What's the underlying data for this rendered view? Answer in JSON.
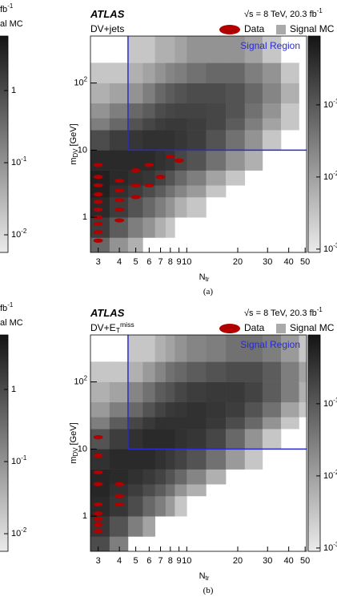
{
  "chart_data": [
    {
      "type": "colorbar",
      "zlim": [
        0.0057,
        5.7
      ],
      "zticks": [
        {
          "value": 0.01,
          "label": "10^{-2}"
        },
        {
          "value": 0.1,
          "label": "10^{-1}"
        },
        1
      ],
      "annotation": "fb^{-1}",
      "legend_text": "al MC"
    },
    {
      "type": "heatmap",
      "title": "ATLAS",
      "subtitle": "DV+jets",
      "annotation": "√s = 8 TeV, 20.3 fb^{-1}",
      "xlabel": "N_{tr}",
      "ylabel": "m_{DV} [GeV]",
      "caption": "(a)",
      "log_x": true,
      "log_y": true,
      "xlim": [
        2.7,
        51
      ],
      "ylim": [
        0.3,
        500
      ],
      "xticks": [
        3,
        4,
        5,
        6,
        7,
        8,
        9,
        10,
        20,
        30,
        40,
        50
      ],
      "yticks": [
        1,
        10,
        {
          "value": 100,
          "label": "10^{2}"
        }
      ],
      "zlim": [
        0.0009,
        0.9
      ],
      "zticks": [
        {
          "value": 0.1,
          "label": "10^{-1}"
        },
        {
          "value": 0.01,
          "label": "10^{-2}"
        },
        {
          "value": 0.001,
          "label": "10^{-3}"
        }
      ],
      "signal_region": {
        "label": "Signal Region",
        "x": 4.5,
        "y": 10,
        "color": "#2a2ad0"
      },
      "x_bins": [
        2.5,
        3.5,
        4.5,
        5.5,
        6.5,
        7.5,
        8.5,
        10,
        13,
        17,
        22,
        28,
        36,
        46,
        51
      ],
      "y_bins": [
        0.3,
        0.5,
        1,
        2,
        3,
        5,
        10,
        20,
        30,
        50,
        100,
        200,
        500
      ],
      "z": [
        [
          0.06,
          0.015,
          0.006,
          null,
          null,
          null,
          null,
          null,
          null,
          null,
          null,
          null,
          null,
          null
        ],
        [
          0.24,
          0.09,
          0.03,
          0.015,
          0.006,
          0.003,
          null,
          null,
          null,
          null,
          null,
          null,
          null,
          null
        ],
        [
          0.45,
          0.24,
          0.12,
          0.06,
          0.03,
          0.015,
          0.006,
          0.003,
          null,
          null,
          null,
          null,
          null,
          null
        ],
        [
          0.6,
          0.36,
          0.24,
          0.15,
          0.09,
          0.045,
          0.024,
          0.012,
          0.003,
          null,
          null,
          null,
          null,
          null
        ],
        [
          0.6,
          0.45,
          0.36,
          0.3,
          0.2,
          0.12,
          0.06,
          0.03,
          0.009,
          0.003,
          null,
          null,
          null,
          null
        ],
        [
          0.45,
          0.45,
          0.45,
          0.45,
          0.36,
          0.3,
          0.18,
          0.12,
          0.045,
          0.015,
          0.006,
          null,
          null,
          null
        ],
        [
          0.15,
          0.24,
          0.3,
          0.36,
          0.36,
          0.36,
          0.3,
          0.24,
          0.12,
          0.045,
          0.015,
          0.003,
          null,
          null
        ],
        [
          0.03,
          0.06,
          0.12,
          0.18,
          0.24,
          0.27,
          0.27,
          0.24,
          0.18,
          0.09,
          0.03,
          0.009,
          0.003,
          null
        ],
        [
          0.015,
          0.03,
          0.06,
          0.09,
          0.15,
          0.18,
          0.2,
          0.2,
          0.18,
          0.12,
          0.045,
          0.015,
          0.003,
          null
        ],
        [
          0.006,
          0.009,
          0.015,
          0.03,
          0.06,
          0.09,
          0.12,
          0.15,
          0.15,
          0.12,
          0.06,
          0.024,
          0.006,
          null
        ],
        [
          0.003,
          0.003,
          0.006,
          0.009,
          0.015,
          0.024,
          0.03,
          0.045,
          0.06,
          0.06,
          0.03,
          0.015,
          0.003,
          null
        ],
        [
          null,
          null,
          0.003,
          0.003,
          0.006,
          0.006,
          0.009,
          0.015,
          0.015,
          0.015,
          0.009,
          0.003,
          null,
          null
        ]
      ],
      "series": [
        {
          "name": "Data",
          "color": "#b00000",
          "x": [
            3,
            3,
            3,
            3,
            3,
            3,
            3,
            3,
            3,
            3,
            4,
            4,
            4,
            4,
            4,
            5,
            5,
            5,
            6,
            6,
            7,
            8,
            9
          ],
          "values": [
            0.45,
            0.6,
            0.8,
            1,
            1.3,
            1.7,
            2.2,
            3,
            4,
            6,
            0.9,
            1.3,
            1.8,
            2.5,
            3.5,
            2,
            3,
            5,
            3,
            6,
            4,
            8,
            7
          ]
        },
        {
          "name": "Signal MC",
          "color": "#aaaaaa"
        }
      ]
    },
    {
      "type": "colorbar",
      "zlim": [
        0.0057,
        5.7
      ],
      "zticks": [
        {
          "value": 0.01,
          "label": "10^{-2}"
        },
        {
          "value": 0.1,
          "label": "10^{-1}"
        },
        1
      ],
      "annotation": "fb^{-1}",
      "legend_text": "al MC"
    },
    {
      "type": "heatmap",
      "title": "ATLAS",
      "subtitle": "DV+E_{T}^{miss}",
      "annotation": "√s = 8 TeV, 20.3 fb^{-1}",
      "xlabel": "N_{tr}",
      "ylabel": "m_{DV} [GeV]",
      "caption": "(b)",
      "log_x": true,
      "log_y": true,
      "xlim": [
        2.7,
        51
      ],
      "ylim": [
        0.3,
        500
      ],
      "xticks": [
        3,
        4,
        5,
        6,
        7,
        8,
        9,
        10,
        20,
        30,
        40,
        50
      ],
      "yticks": [
        1,
        10,
        {
          "value": 100,
          "label": "10^{2}"
        }
      ],
      "zlim": [
        0.0009,
        0.9
      ],
      "zticks": [
        {
          "value": 0.1,
          "label": "10^{-1}"
        },
        {
          "value": 0.01,
          "label": "10^{-2}"
        },
        {
          "value": 0.001,
          "label": "10^{-3}"
        }
      ],
      "signal_region": {
        "label": "Signal Region",
        "x": 4.5,
        "y": 10,
        "color": "#2a2ad0"
      },
      "x_bins": [
        2.5,
        3.5,
        4.5,
        5.5,
        6.5,
        7.5,
        8.5,
        10,
        13,
        17,
        22,
        28,
        36,
        46,
        51
      ],
      "y_bins": [
        0.3,
        0.5,
        1,
        2,
        3,
        5,
        10,
        20,
        30,
        50,
        100,
        200,
        500
      ],
      "z": [
        [
          0.15,
          0.03,
          null,
          null,
          null,
          null,
          null,
          null,
          null,
          null,
          null,
          null,
          null,
          null
        ],
        [
          0.3,
          0.12,
          0.03,
          0.009,
          null,
          null,
          null,
          null,
          null,
          null,
          null,
          null,
          null,
          null
        ],
        [
          0.45,
          0.3,
          0.15,
          0.06,
          0.03,
          0.012,
          0.003,
          null,
          null,
          null,
          null,
          null,
          null,
          null
        ],
        [
          0.5,
          0.36,
          0.24,
          0.15,
          0.09,
          0.045,
          0.015,
          0.006,
          null,
          null,
          null,
          null,
          null,
          null
        ],
        [
          0.5,
          0.45,
          0.36,
          0.27,
          0.2,
          0.12,
          0.06,
          0.024,
          0.006,
          null,
          null,
          null,
          null,
          null
        ],
        [
          0.36,
          0.45,
          0.45,
          0.45,
          0.36,
          0.27,
          0.2,
          0.12,
          0.045,
          0.012,
          0.003,
          null,
          null,
          null
        ],
        [
          0.12,
          0.24,
          0.36,
          0.45,
          0.45,
          0.45,
          0.36,
          0.3,
          0.18,
          0.06,
          0.015,
          0.003,
          null,
          null
        ],
        [
          0.03,
          0.09,
          0.18,
          0.27,
          0.36,
          0.36,
          0.36,
          0.36,
          0.27,
          0.15,
          0.06,
          0.015,
          0.003,
          null
        ],
        [
          0.012,
          0.03,
          0.06,
          0.12,
          0.2,
          0.27,
          0.3,
          0.36,
          0.3,
          0.24,
          0.12,
          0.045,
          0.009,
          0.003
        ],
        [
          0.006,
          0.009,
          0.024,
          0.045,
          0.09,
          0.12,
          0.18,
          0.24,
          0.27,
          0.27,
          0.2,
          0.09,
          0.03,
          0.006
        ],
        [
          0.003,
          0.003,
          0.006,
          0.012,
          0.024,
          0.045,
          0.06,
          0.09,
          0.12,
          0.15,
          0.15,
          0.09,
          0.03,
          0.009
        ],
        [
          null,
          null,
          0.003,
          0.003,
          0.006,
          0.009,
          0.015,
          0.024,
          0.03,
          0.045,
          0.045,
          0.03,
          0.012,
          0.003
        ]
      ],
      "series": [
        {
          "name": "Data",
          "color": "#b00000",
          "x": [
            3,
            3,
            3,
            3,
            3,
            3,
            3,
            3,
            3,
            4,
            4,
            4
          ],
          "values": [
            0.6,
            0.75,
            0.9,
            1.1,
            1.5,
            3,
            4.5,
            8,
            15,
            1.5,
            2,
            3
          ]
        },
        {
          "name": "Signal MC",
          "color": "#aaaaaa"
        }
      ]
    }
  ]
}
